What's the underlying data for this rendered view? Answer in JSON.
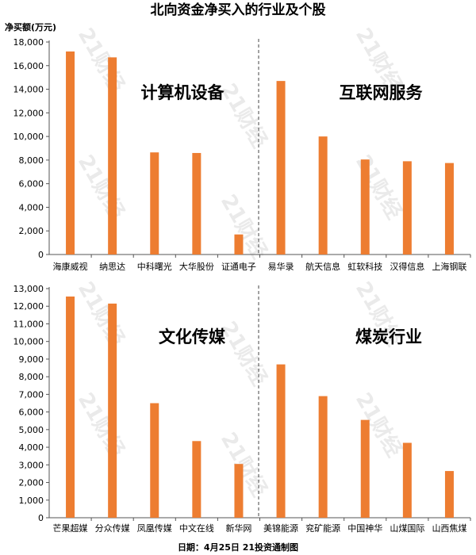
{
  "title": "北向资金净买入的行业及个股",
  "footer": "日期：4月25日 21投资通制图",
  "watermark": "21财经",
  "colors": {
    "bar": "#ED7D31",
    "axis": "#555555",
    "divider": "#444444"
  },
  "chart_data": [
    {
      "type": "bar",
      "ylabel": "净买额(万元)",
      "ylim": [
        0,
        18000
      ],
      "yticks": [
        0,
        2000,
        4000,
        6000,
        8000,
        10000,
        12000,
        14000,
        16000,
        18000
      ],
      "ytick_labels": [
        "0",
        "2,000",
        "4,000",
        "6,000",
        "8,000",
        "10,000",
        "12,000",
        "14,000",
        "16,000",
        "18,000"
      ],
      "categories": [
        "海康威视",
        "纳思达",
        "中科曙光",
        "大华股份",
        "证通电子",
        "易华录",
        "航天信息",
        "虹软科技",
        "汉得信息",
        "上海钢联"
      ],
      "values": [
        17200,
        16700,
        8650,
        8600,
        1700,
        14700,
        10000,
        8050,
        7900,
        7750
      ],
      "groups": [
        "计算机设备",
        "互联网服务"
      ]
    },
    {
      "type": "bar",
      "ylim": [
        0,
        13000
      ],
      "yticks": [
        0,
        1000,
        2000,
        3000,
        4000,
        5000,
        6000,
        7000,
        8000,
        9000,
        10000,
        11000,
        12000,
        13000
      ],
      "ytick_labels": [
        "0",
        "1,000",
        "2,000",
        "3,000",
        "4,000",
        "5,000",
        "6,000",
        "7,000",
        "8,000",
        "9,000",
        "10,000",
        "11,000",
        "12,000",
        "13,000"
      ],
      "categories": [
        "芒果超媒",
        "分众传媒",
        "凤凰传媒",
        "中文在线",
        "新华网",
        "美锦能源",
        "兖矿能源",
        "中国神华",
        "山煤国际",
        "山西焦煤"
      ],
      "values": [
        12550,
        12150,
        6500,
        4350,
        3050,
        8700,
        6900,
        5550,
        4250,
        2650
      ],
      "groups": [
        "文化传媒",
        "煤炭行业"
      ]
    }
  ]
}
